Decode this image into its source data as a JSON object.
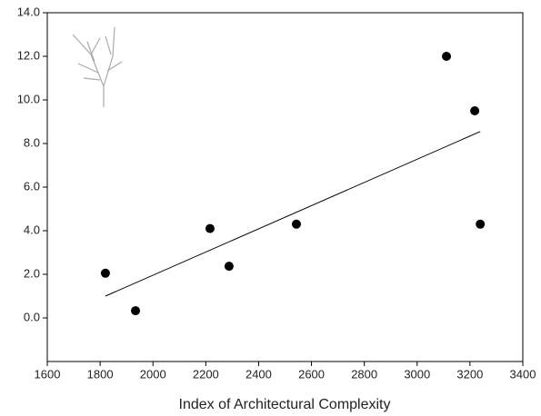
{
  "chart_data": {
    "type": "scatter",
    "x_label": "Index of Architectural Complexity",
    "x": [
      1820,
      1934,
      2216,
      2288,
      2543,
      3111,
      3218,
      3239
    ],
    "values": [
      2.05,
      0.33,
      4.1,
      2.37,
      4.3,
      12.0,
      9.5,
      4.3
    ],
    "color": "#000000",
    "trend_line": {
      "x": [
        1820,
        3239
      ],
      "y": [
        1.0,
        8.55
      ],
      "color": "#000000"
    },
    "xlim": [
      1600,
      3400
    ],
    "xticks": [
      1600,
      1800,
      2000,
      2200,
      2400,
      2600,
      2800,
      3000,
      3200,
      3400
    ],
    "ylim": [
      -2,
      14
    ],
    "yticks": [
      {
        "value": 0,
        "label": "0.0"
      },
      {
        "value": 2,
        "label": "2.0"
      },
      {
        "value": 4,
        "label": "4.0"
      },
      {
        "value": 6,
        "label": "6.0"
      },
      {
        "value": 8,
        "label": "8.0"
      },
      {
        "value": 10,
        "label": "10.0"
      },
      {
        "value": 12,
        "label": "12.0"
      },
      {
        "value": 14,
        "label": "14.0"
      }
    ]
  }
}
